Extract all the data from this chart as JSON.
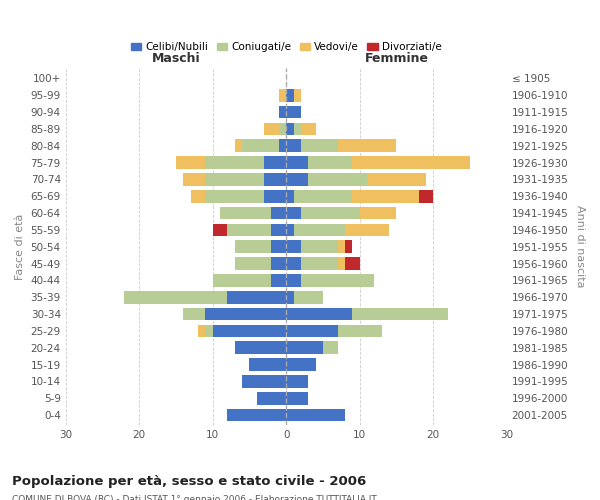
{
  "age_groups": [
    "100+",
    "95-99",
    "90-94",
    "85-89",
    "80-84",
    "75-79",
    "70-74",
    "65-69",
    "60-64",
    "55-59",
    "50-54",
    "45-49",
    "40-44",
    "35-39",
    "30-34",
    "25-29",
    "20-24",
    "15-19",
    "10-14",
    "5-9",
    "0-4"
  ],
  "birth_years": [
    "≤ 1905",
    "1906-1910",
    "1911-1915",
    "1916-1920",
    "1921-1925",
    "1926-1930",
    "1931-1935",
    "1936-1940",
    "1941-1945",
    "1946-1950",
    "1951-1955",
    "1956-1960",
    "1961-1965",
    "1966-1970",
    "1971-1975",
    "1976-1980",
    "1981-1985",
    "1986-1990",
    "1991-1995",
    "1996-2000",
    "2001-2005"
  ],
  "maschi": {
    "celibi": [
      0,
      0,
      1,
      0,
      1,
      3,
      3,
      3,
      2,
      2,
      2,
      2,
      2,
      8,
      11,
      10,
      7,
      5,
      6,
      4,
      8
    ],
    "coniugati": [
      0,
      0,
      0,
      1,
      5,
      8,
      8,
      8,
      7,
      6,
      5,
      5,
      8,
      14,
      3,
      1,
      0,
      0,
      0,
      0,
      0
    ],
    "vedovi": [
      0,
      1,
      0,
      2,
      1,
      4,
      3,
      2,
      0,
      0,
      0,
      0,
      0,
      0,
      0,
      1,
      0,
      0,
      0,
      0,
      0
    ],
    "divorziati": [
      0,
      0,
      0,
      0,
      0,
      0,
      0,
      0,
      0,
      2,
      0,
      0,
      0,
      0,
      0,
      0,
      0,
      0,
      0,
      0,
      0
    ]
  },
  "femmine": {
    "nubili": [
      0,
      1,
      2,
      1,
      2,
      3,
      3,
      1,
      2,
      1,
      2,
      2,
      2,
      1,
      9,
      7,
      5,
      4,
      3,
      3,
      8
    ],
    "coniugate": [
      0,
      0,
      0,
      1,
      5,
      6,
      8,
      8,
      8,
      7,
      5,
      5,
      10,
      4,
      13,
      6,
      2,
      0,
      0,
      0,
      0
    ],
    "vedove": [
      0,
      1,
      0,
      2,
      8,
      16,
      8,
      9,
      5,
      6,
      1,
      1,
      0,
      0,
      0,
      0,
      0,
      0,
      0,
      0,
      0
    ],
    "divorziate": [
      0,
      0,
      0,
      0,
      0,
      0,
      0,
      2,
      0,
      0,
      1,
      2,
      0,
      0,
      0,
      0,
      0,
      0,
      0,
      0,
      0
    ]
  },
  "colors": {
    "celibi_nubili": "#4472c4",
    "coniugati_e": "#b8cc96",
    "vedovi_e": "#f0c060",
    "divorziati_e": "#c0282c"
  },
  "xlim": 30,
  "title": "Popolazione per età, sesso e stato civile - 2006",
  "subtitle": "COMUNE DI BOVA (RC) - Dati ISTAT 1° gennaio 2006 - Elaborazione TUTTITALIA.IT",
  "ylabel_left": "Fasce di età",
  "ylabel_right": "Anni di nascita",
  "xlabel_left": "Maschi",
  "xlabel_right": "Femmine",
  "legend_labels": [
    "Celibi/Nubili",
    "Coniugati/e",
    "Vedovi/e",
    "Divorziati/e"
  ],
  "background_color": "#ffffff",
  "bar_height": 0.75
}
